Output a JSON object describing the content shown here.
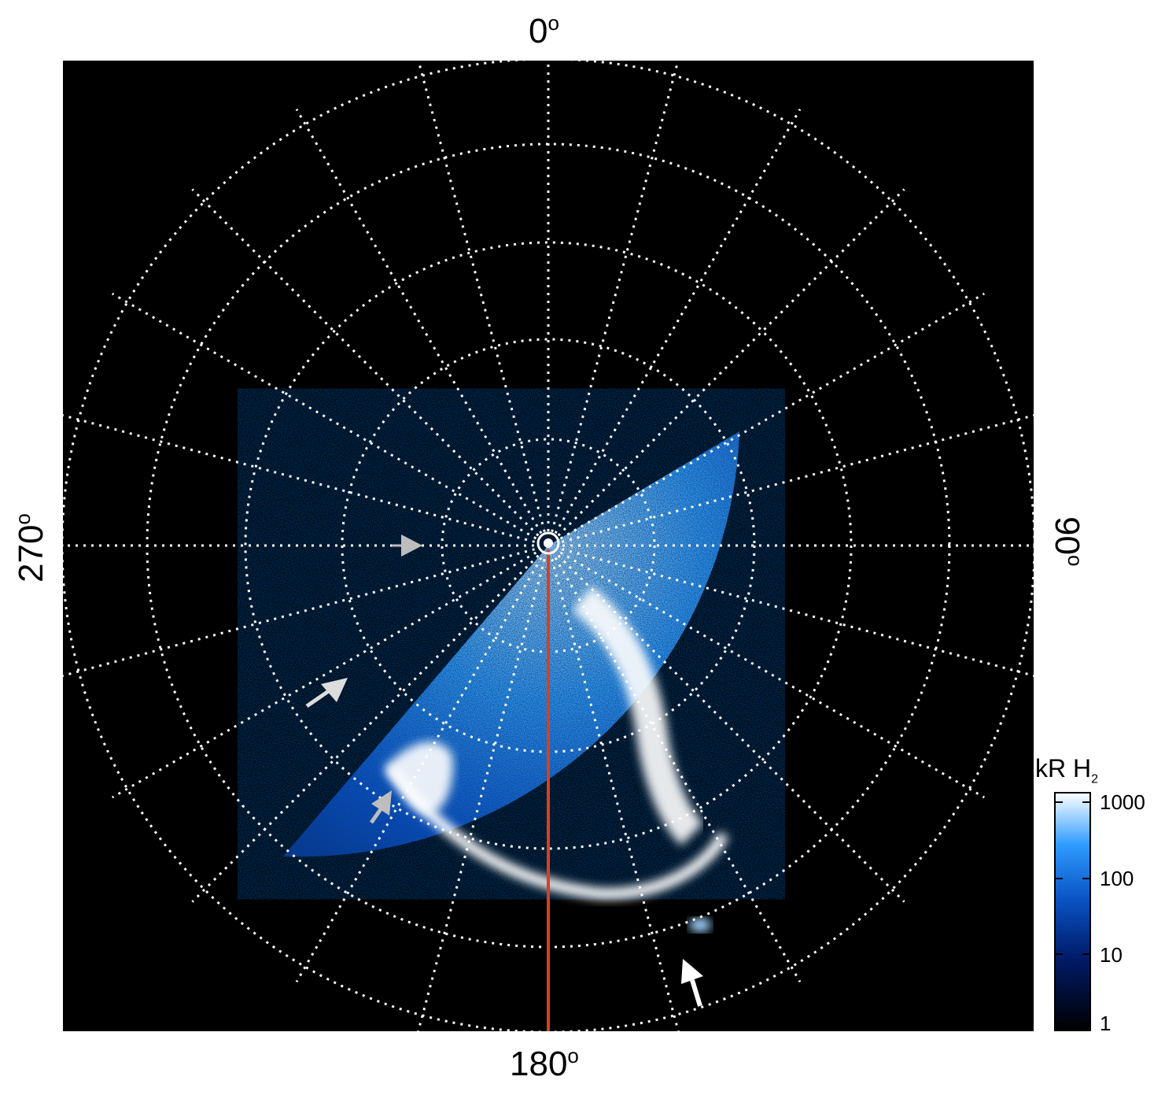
{
  "plot": {
    "background": "#000000",
    "grid_color": "#ffffff",
    "meridian_color": "#d64020",
    "arrow_colors": [
      "#bdbdbd",
      "#ffffff"
    ]
  },
  "labels": {
    "top": "0",
    "bottom": "180",
    "left": "270",
    "right": "90",
    "degree_symbol": "o"
  },
  "colorbar": {
    "title": "kR H",
    "title_subscript": "2",
    "ticks": [
      "1000",
      "100",
      "10",
      "1"
    ],
    "colors": [
      "#000000",
      "#001a66",
      "#0a52c4",
      "#2e9bff",
      "#ffffff"
    ]
  }
}
